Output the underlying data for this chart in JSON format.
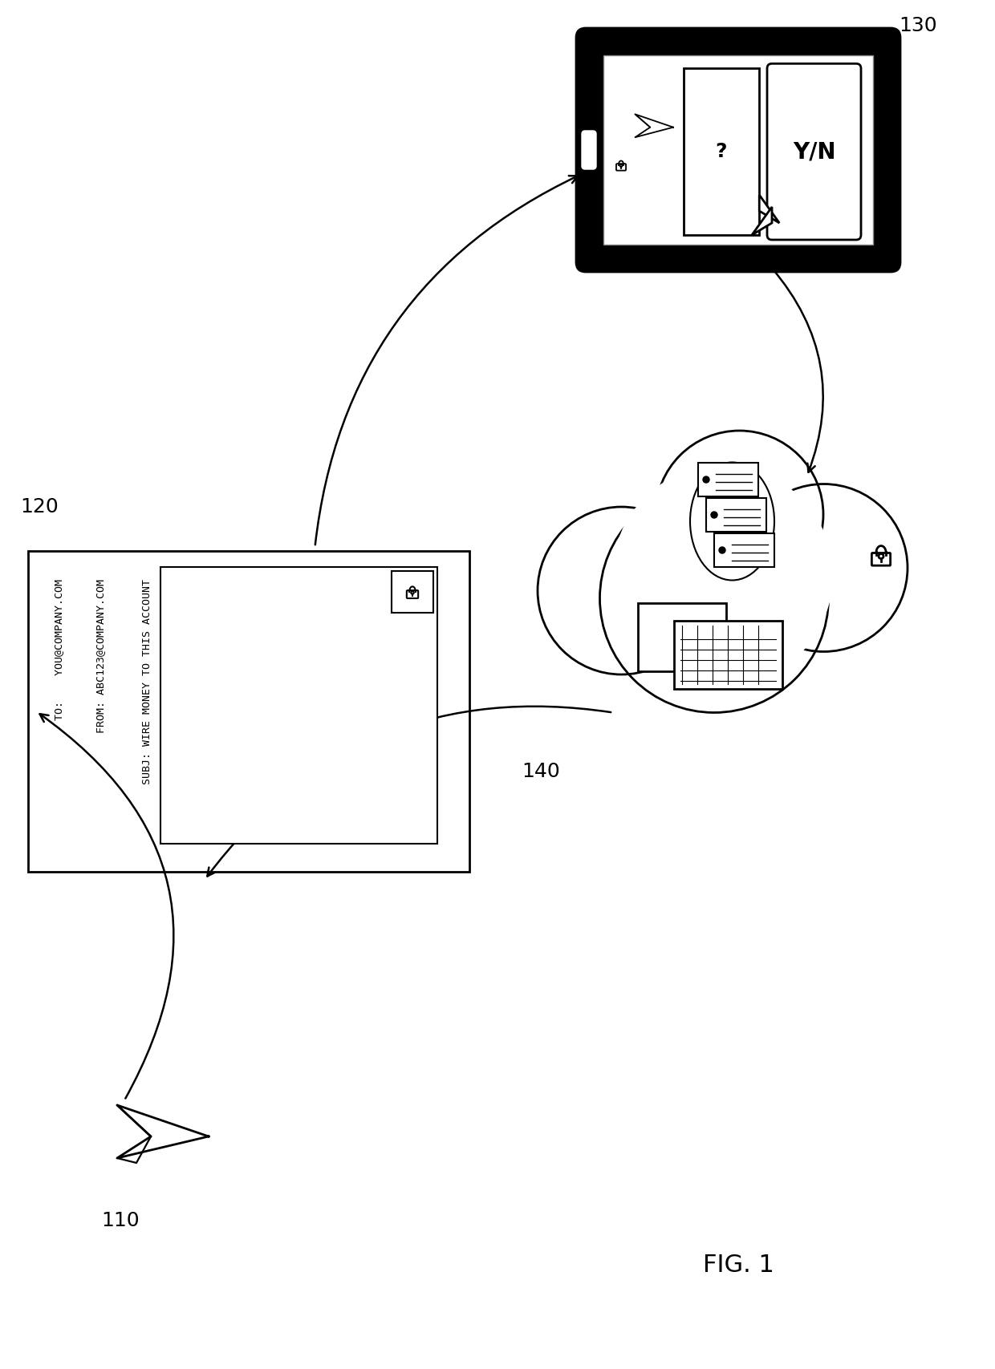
{
  "bg_color": "#ffffff",
  "line_color": "#000000",
  "label_110": "110",
  "label_120": "120",
  "label_130": "130",
  "label_140": "140",
  "email_to": "TO:    YOU@COMPANY.COM",
  "email_from": "FROM: ABC123@COMPANY.COM",
  "email_subj": "SUBJ: WIRE MONEY TO THIS ACCOUNT",
  "yn_text": "Y/N",
  "q_text": "?",
  "fig_label": "FIG. 1",
  "fig_size": [
    12.4,
    17.07
  ],
  "dpi": 100
}
